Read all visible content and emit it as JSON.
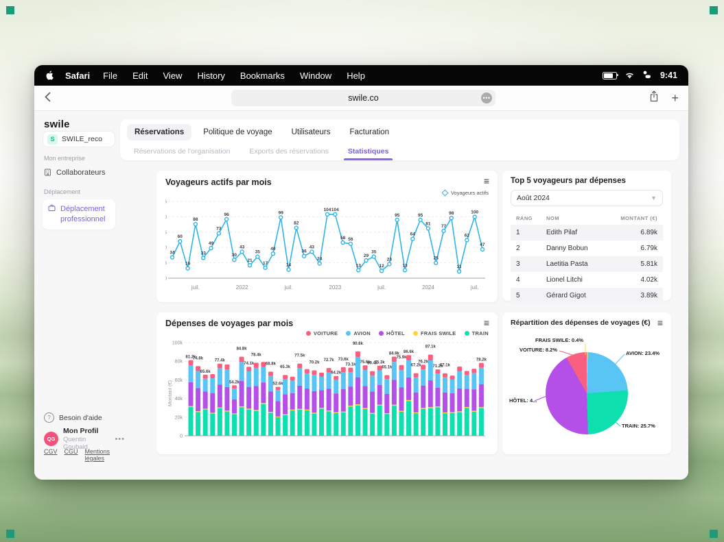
{
  "menubar": {
    "app": "Safari",
    "items": [
      "File",
      "Edit",
      "View",
      "History",
      "Bookmarks",
      "Window",
      "Help"
    ],
    "time": "9:41"
  },
  "browser": {
    "url": "swile.co",
    "more_label": "•••"
  },
  "sidebar": {
    "logo": "swile",
    "org_badge": "S",
    "org_name": "SWILE_reco",
    "section_company": "Mon entreprise",
    "item_collaborateurs": "Collaborateurs",
    "section_travel": "Déplacement",
    "item_deplacement": "Déplacement professionnel",
    "help": "Besoin d'aide",
    "profile_name": "Mon Profil",
    "profile_user": "Quentin Goubaid",
    "profile_initials": "QG",
    "links": [
      "CGV",
      "CGU",
      "Mentions légales"
    ]
  },
  "tabs": {
    "primary": [
      {
        "label": "Réservations",
        "active": true
      },
      {
        "label": "Politique de voyage",
        "active": false
      },
      {
        "label": "Utilisateurs",
        "active": false
      },
      {
        "label": "Facturation",
        "active": false
      }
    ],
    "secondary": [
      {
        "label": "Réservations de l'organisation",
        "active": false
      },
      {
        "label": "Exports des réservations",
        "active": false
      },
      {
        "label": "Statistiques",
        "active": true
      }
    ]
  },
  "top5": {
    "title": "Top 5 voyageurs par dépenses",
    "period": "Août 2024",
    "columns": [
      "RANG",
      "NOM",
      "MONTANT (€)"
    ],
    "rows": [
      [
        "1",
        "Edith Pilaf",
        "6.89k"
      ],
      [
        "2",
        "Danny Bobun",
        "6.79k"
      ],
      [
        "3",
        "Laetitia Pasta",
        "5.81k"
      ],
      [
        "4",
        "Lionel Litchi",
        "4.02k"
      ],
      [
        "5",
        "Gérard Gigot",
        "3.89k"
      ]
    ]
  },
  "chart_data": [
    {
      "type": "line",
      "title": "Voyageurs actifs par mois",
      "legend": "Voyageurs actifs",
      "color": "#2FB3E8",
      "values": [
        34,
        60,
        16,
        88,
        33,
        49,
        73,
        96,
        30,
        43,
        21,
        35,
        17,
        40,
        99,
        14,
        82,
        36,
        43,
        24,
        104,
        104,
        58,
        56,
        13,
        29,
        35,
        12,
        23,
        95,
        13,
        64,
        95,
        81,
        25,
        77,
        98,
        11,
        62,
        100,
        47
      ],
      "ylim": [
        0,
        125
      ],
      "yticks": [
        0,
        25,
        50,
        75,
        100,
        125
      ],
      "xticks": [
        {
          "i": 3,
          "label": "juil."
        },
        {
          "i": 9,
          "label": "2022"
        },
        {
          "i": 15,
          "label": "juil."
        },
        {
          "i": 21,
          "label": "2023"
        },
        {
          "i": 27,
          "label": "juil."
        },
        {
          "i": 33,
          "label": "2024"
        },
        {
          "i": 39,
          "label": "juil."
        }
      ],
      "grid": "dashed-horizontal"
    },
    {
      "type": "stacked-bar",
      "title": "Dépenses de voyages par mois",
      "ylabel": "Montant (€)",
      "ylim_k": [
        0,
        100
      ],
      "yticks": [
        "0",
        "20k",
        "40k",
        "60k",
        "80k",
        "100k"
      ],
      "series": [
        {
          "name": "VOITURE",
          "color": "#F9607F"
        },
        {
          "name": "AVION",
          "color": "#58C5F4"
        },
        {
          "name": "HÔTEL",
          "color": "#B44FE8"
        },
        {
          "name": "FRAIS SWILE",
          "color": "#FFD43B"
        },
        {
          "name": "TRAIN",
          "color": "#0EDFAE"
        }
      ],
      "stack_order_bottom_to_top": [
        "TRAIN",
        "FRAIS SWILE",
        "HÔTEL",
        "AVION",
        "VOITURE"
      ],
      "totals_k": [
        81.2,
        74.8,
        65.6,
        66.2,
        77.4,
        76.6,
        54.2,
        84.8,
        74.1,
        78.4,
        79.2,
        68.8,
        52.6,
        65.3,
        63.4,
        77.5,
        71.6,
        70.2,
        67.8,
        72.7,
        64.2,
        73.6,
        73.1,
        90.6,
        75.6,
        69.4,
        75.3,
        65.1,
        84.9,
        75.9,
        86.6,
        67.2,
        76.2,
        87.1,
        71.2,
        67.1,
        64.6,
        74.4,
        69.6,
        72.0,
        78.2
      ],
      "bar_labels": [
        "81.2k",
        "74.8k",
        "65.6k",
        "",
        "77.4k",
        "",
        "54.2k",
        "84.8k",
        "74.1k",
        "78.4k",
        "",
        "68.8k",
        "52.6k",
        "65.3k",
        "",
        "77.5k",
        "",
        "70.2k",
        "",
        "72.7k",
        "64.2k",
        "73.6k",
        "73.1k",
        "90.6k",
        "75.6k",
        "69.4k",
        "75.3k",
        "65.1k",
        "84.9k",
        "75.9k",
        "86.6k",
        "67.2k",
        "76.2k",
        "87.1k",
        "71.2k",
        "67.1k",
        "",
        "",
        "",
        "",
        "78.2k"
      ],
      "segment_share_patterns": [
        [
          0.38,
          0.013,
          0.315,
          0.225,
          0.067
        ],
        [
          0.34,
          0.013,
          0.33,
          0.245,
          0.072
        ],
        [
          0.43,
          0.013,
          0.28,
          0.21,
          0.067
        ],
        [
          0.36,
          0.013,
          0.32,
          0.24,
          0.067
        ]
      ],
      "grid": "dashed-horizontal"
    },
    {
      "type": "pie",
      "title": "Répartition des dépenses de voyages (€)",
      "start_angle_deg": 0,
      "slices": [
        {
          "name": "FRAIS SWILE",
          "pct": 0.4,
          "color": "#FFD43B",
          "label": "FRAIS SWILE: 0.4%"
        },
        {
          "name": "AVION",
          "pct": 23.4,
          "color": "#58C5F4",
          "label": "AVION: 23.4%"
        },
        {
          "name": "TRAIN",
          "pct": 25.7,
          "color": "#0EDFAE",
          "label": "TRAIN: 25.7%"
        },
        {
          "name": "HÔTEL",
          "pct": 42.3,
          "color": "#B44FE8",
          "label": "HÔTEL: 4..."
        },
        {
          "name": "VOITURE",
          "pct": 8.2,
          "color": "#F9607F",
          "label": "VOITURE: 8.2%"
        }
      ]
    }
  ]
}
